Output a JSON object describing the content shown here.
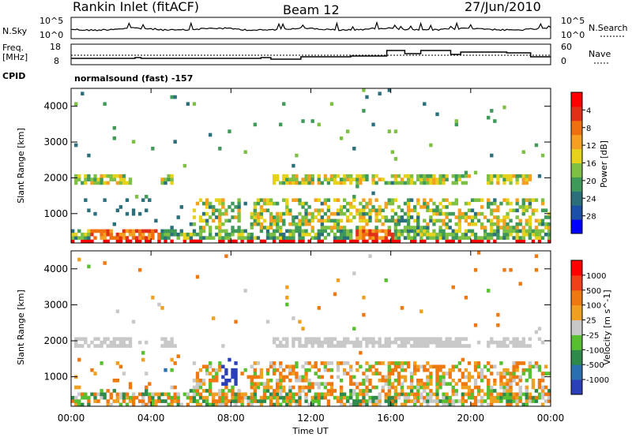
{
  "header": {
    "title": "Rankin Inlet (fitACF)",
    "beam": "Beam 12",
    "date": "27/Jun/2010"
  },
  "nsky_panel": {
    "left_label": "N.Sky",
    "right_label": "N.Search",
    "left_ticks": [
      "10^5",
      "10^0"
    ],
    "right_ticks": [
      "10^5",
      "10^0"
    ]
  },
  "freq_panel": {
    "left_label_1": "Freq.",
    "left_label_2": "[MHz]",
    "right_label": "Nave",
    "left_ticks": [
      "18",
      "8"
    ],
    "right_ticks": [
      "60",
      "0"
    ]
  },
  "cpid_panel": {
    "label": "CPID",
    "value": "normalsound (fast) -157"
  },
  "chart_data": [
    {
      "type": "heatmap",
      "name": "power",
      "ylabel": "Slant Range [km]",
      "y_ticks": [
        "1000",
        "2000",
        "3000",
        "4000"
      ],
      "y_range": [
        180,
        4500
      ],
      "x_range_hours": [
        0,
        24
      ],
      "colorbar": {
        "label": "Power [dB]",
        "ticks": [
          "4",
          "8",
          "12",
          "16",
          "20",
          "24",
          "28"
        ],
        "colors": [
          "#0000ff",
          "#1c4fa8",
          "#2a6f7a",
          "#3f9a5a",
          "#7dc043",
          "#e6d21a",
          "#f5a020",
          "#f07010",
          "#e23018",
          "#ff0000"
        ]
      }
    },
    {
      "type": "heatmap",
      "name": "velocity",
      "ylabel": "Slant Range [km]",
      "y_ticks": [
        "1000",
        "2000",
        "3000",
        "4000"
      ],
      "y_range": [
        180,
        4500
      ],
      "x_range_hours": [
        0,
        24
      ],
      "colorbar": {
        "label": "Velocity [m s^-1]",
        "ticks": [
          "1000",
          "500",
          "100",
          "25",
          "-25",
          "-100",
          "-500",
          "-1000"
        ],
        "colors": [
          "#2a3fb8",
          "#2a6fb0",
          "#2e8a4a",
          "#58c030",
          "#c8c8c8",
          "#f0a020",
          "#f07810",
          "#f04018",
          "#ff0000"
        ]
      }
    }
  ],
  "x_axis": {
    "label": "Time UT",
    "ticks": [
      "00:00",
      "04:00",
      "08:00",
      "12:00",
      "16:00",
      "20:00",
      "00:00"
    ]
  }
}
